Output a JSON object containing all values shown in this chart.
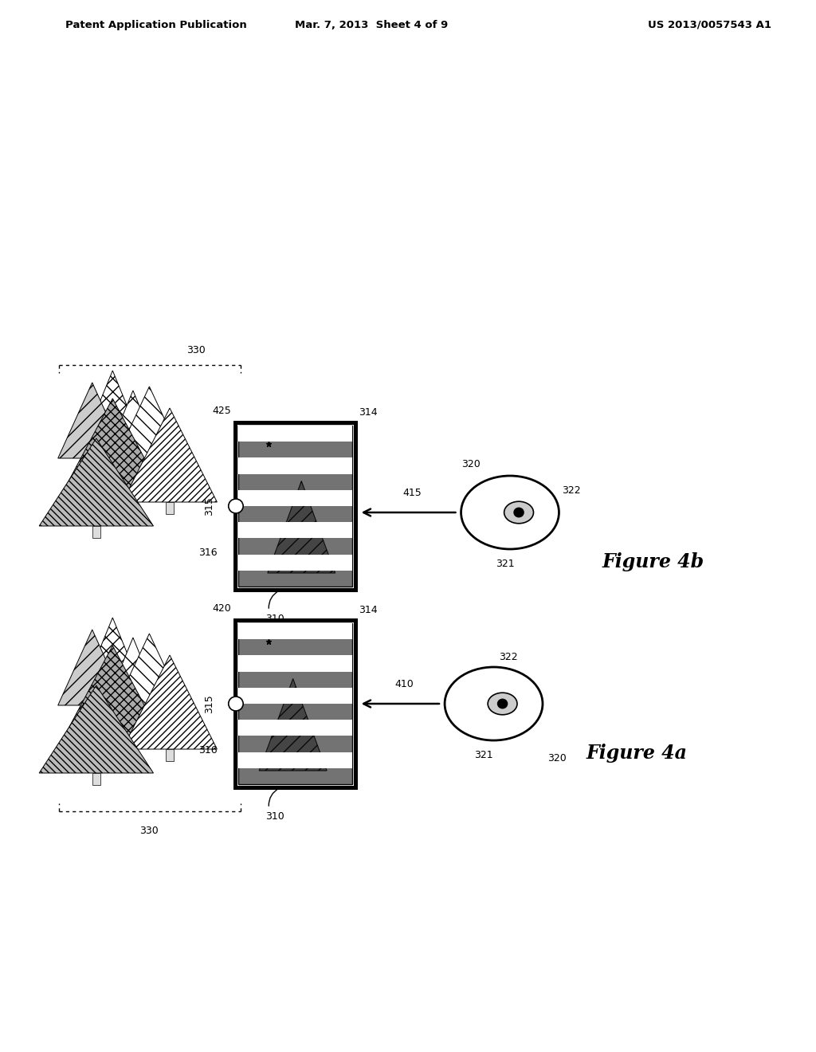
{
  "bg_color": "#ffffff",
  "header_left": "Patent Application Publication",
  "header_mid": "Mar. 7, 2013  Sheet 4 of 9",
  "header_right": "US 2013/0057543 A1"
}
